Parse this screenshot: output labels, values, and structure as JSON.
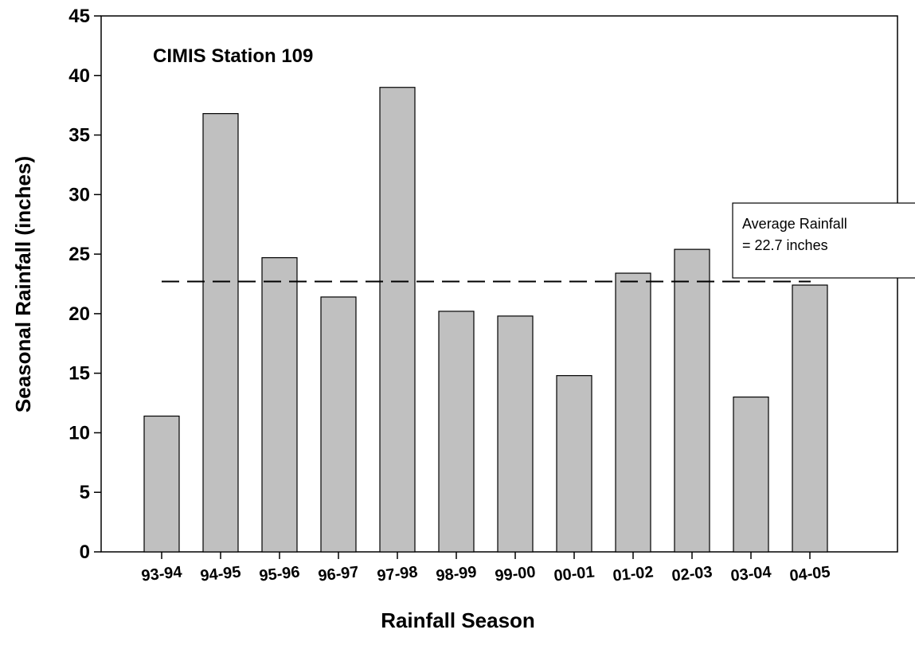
{
  "chart_data": {
    "type": "bar",
    "title": "",
    "annotation": "CIMIS Station 109",
    "xlabel": "Rainfall Season",
    "ylabel": "Seasonal Rainfall (inches)",
    "ylim": [
      0,
      45
    ],
    "yticks": [
      0,
      5,
      10,
      15,
      20,
      25,
      30,
      35,
      40,
      45
    ],
    "categories": [
      "93-94",
      "94-95",
      "95-96",
      "96-97",
      "97-98",
      "98-99",
      "99-00",
      "00-01",
      "01-02",
      "02-03",
      "03-04",
      "04-05"
    ],
    "values": [
      11.4,
      36.8,
      24.7,
      21.4,
      39.0,
      20.2,
      19.8,
      14.8,
      23.4,
      25.4,
      13.0,
      22.4
    ],
    "bar_color": "#c0c0c0",
    "reference_line": {
      "value": 22.7,
      "style": "dashed",
      "label_lines": [
        "Average Rainfall",
        "= 22.7 inches"
      ]
    },
    "grid": false,
    "legend": "none"
  }
}
